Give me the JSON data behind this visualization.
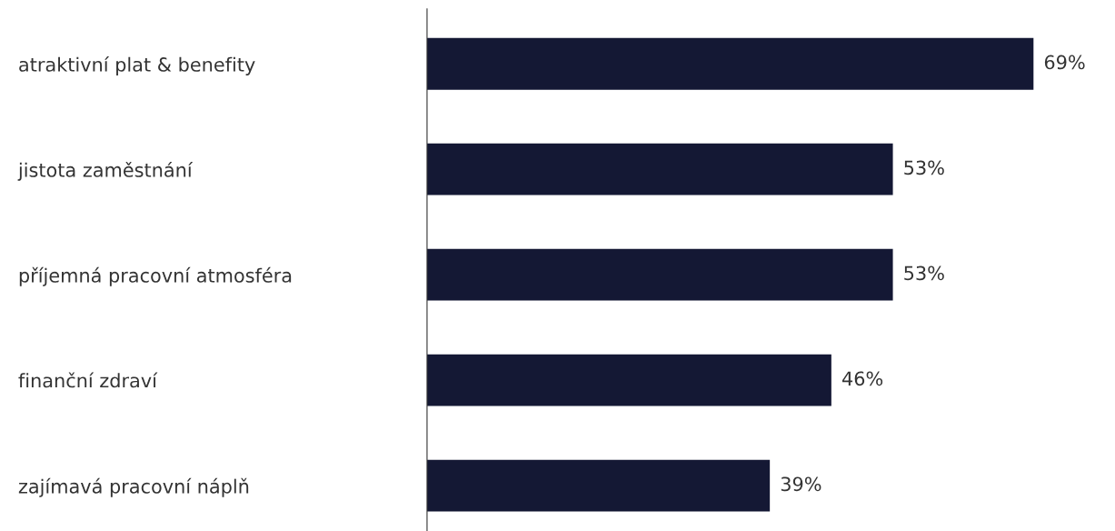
{
  "chart_data": {
    "type": "bar",
    "orientation": "horizontal",
    "categories": [
      "atraktivní plat & benefity",
      "jistota zaměstnání",
      "příjemná pracovní atmosféra",
      "finanční zdraví",
      "zajímavá pracovní náplň"
    ],
    "values": [
      69,
      53,
      53,
      46,
      39
    ],
    "value_labels": [
      "69%",
      "53%",
      "53%",
      "46%",
      "39%"
    ],
    "color": "#141834",
    "tick_labels": "y",
    "grid": false,
    "legend": false
  }
}
